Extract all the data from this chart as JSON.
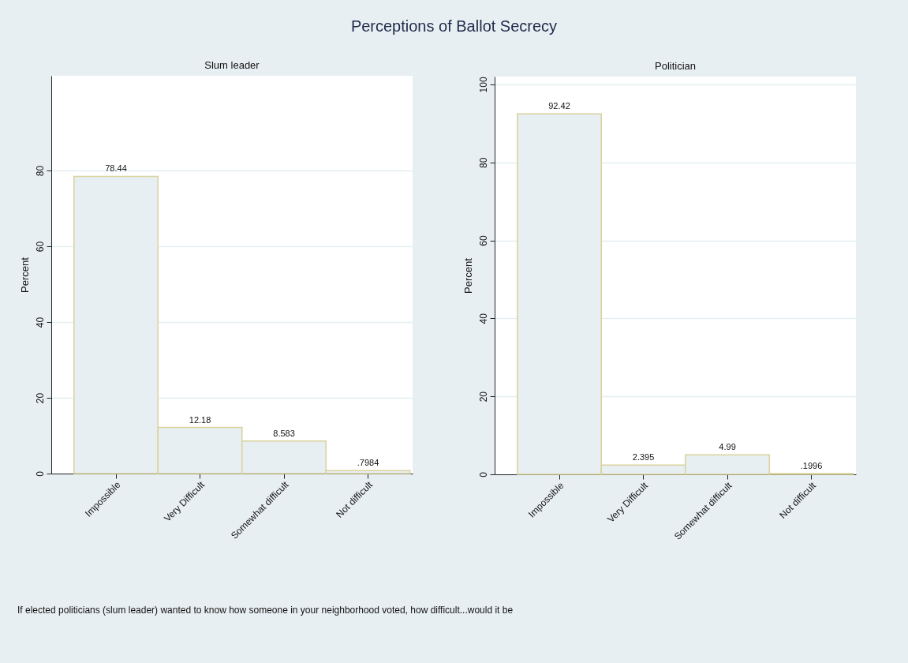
{
  "chart_data": [
    {
      "type": "bar",
      "title": "Perceptions of Ballot Secrecy",
      "subtitle": "Slum leader",
      "ylabel": "Percent",
      "categories": [
        "Impossible",
        "Very Difficult",
        "Somewhat difficult",
        "Not difficult"
      ],
      "values": [
        78.44,
        12.18,
        8.583,
        0.7984
      ],
      "value_labels": [
        "78.44",
        "12.18",
        "8.583",
        ".7984"
      ],
      "color": "#e8eff2",
      "ylim": [
        0,
        105
      ],
      "yticks": [
        0,
        20,
        40,
        60,
        80
      ],
      "grid": "y",
      "annotations": [
        "If elected politicians (slum leader) wanted to know how someone in your neighborhood voted, how difficult...would it be"
      ]
    },
    {
      "type": "bar",
      "subtitle": "Politician",
      "ylabel": "Percent",
      "categories": [
        "Impossible",
        "Very Difficult",
        "Somewhat difficult",
        "Not difficult"
      ],
      "values": [
        92.42,
        2.395,
        4.99,
        0.1996
      ],
      "value_labels": [
        "92.42",
        "2.395",
        "4.99",
        ".1996"
      ],
      "color": "#e8eff2",
      "ylim": [
        0,
        102
      ],
      "yticks": [
        0,
        20,
        40,
        60,
        80,
        100
      ],
      "grid": "y"
    }
  ]
}
